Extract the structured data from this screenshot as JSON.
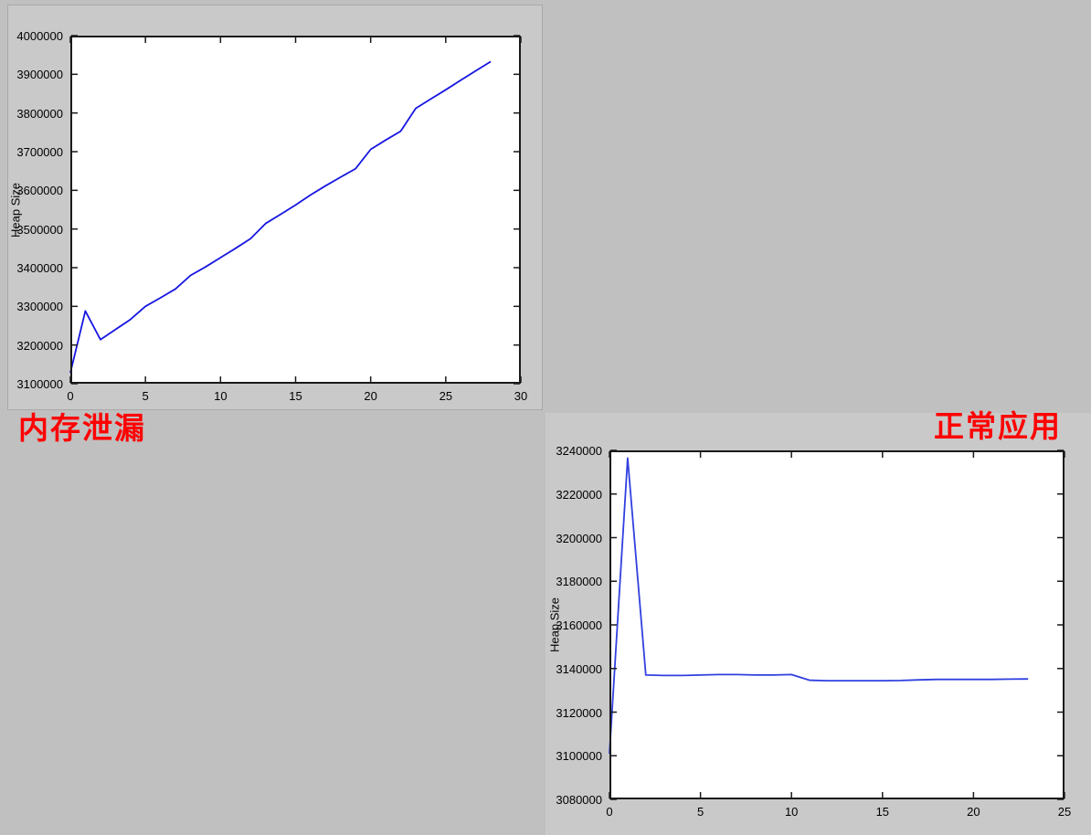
{
  "page": {
    "background_color": "#c0c0c0",
    "figure_background_color": "#c9c9c9",
    "annotation_color": "#ff0000",
    "axis_color": "#1a1a1a",
    "plot_background_color": "#ffffff"
  },
  "annotations": [
    {
      "text": "内存泄漏",
      "color": "#ff0000"
    },
    {
      "text": "正常应用",
      "color": "#ff0000"
    }
  ],
  "charts": [
    {
      "name": "memory-leak-heap-chart",
      "ylabel": "Heap Size",
      "line_color": "#1616e0",
      "xlim": [
        0,
        30
      ],
      "ylim": [
        3100000,
        4000000
      ],
      "xticks": [
        0,
        5,
        10,
        15,
        20,
        25,
        30
      ],
      "yticks": [
        3100000,
        3200000,
        3300000,
        3400000,
        3500000,
        3600000,
        3700000,
        3800000,
        3900000,
        4000000
      ]
    },
    {
      "name": "normal-app-heap-chart",
      "ylabel": "Heap Size",
      "line_color": "#3040df",
      "xlim": [
        0,
        25
      ],
      "ylim": [
        3080000,
        3240000
      ],
      "xticks": [
        0,
        5,
        10,
        15,
        20,
        25
      ],
      "yticks": [
        3080000,
        3100000,
        3120000,
        3140000,
        3160000,
        3180000,
        3200000,
        3220000,
        3240000
      ]
    }
  ],
  "chart_data": [
    {
      "type": "line",
      "title": "",
      "xlabel": "",
      "ylabel": "Heap Size",
      "annotation": "内存泄漏",
      "legend": null,
      "grid": false,
      "xlim": [
        0,
        30
      ],
      "ylim": [
        3100000,
        4000000
      ],
      "x": [
        0,
        1,
        2,
        3,
        4,
        5,
        6,
        7,
        8,
        9,
        10,
        11,
        12,
        13,
        14,
        15,
        16,
        17,
        18,
        19,
        20,
        21,
        22,
        23,
        24,
        25,
        26,
        27,
        28
      ],
      "y": [
        3128000,
        3288000,
        3214000,
        3240000,
        3266000,
        3300000,
        3322000,
        3345000,
        3380000,
        3402000,
        3426000,
        3450000,
        3475000,
        3514000,
        3538000,
        3562000,
        3588000,
        3612000,
        3634000,
        3656000,
        3706000,
        3730000,
        3753000,
        3812000,
        3836000,
        3860000,
        3885000,
        3909000,
        3933000
      ]
    },
    {
      "type": "line",
      "title": "",
      "xlabel": "",
      "ylabel": "Heap Size",
      "annotation": "正常应用",
      "legend": null,
      "grid": false,
      "xlim": [
        0,
        25
      ],
      "ylim": [
        3080000,
        3240000
      ],
      "x": [
        0,
        1,
        2,
        3,
        4,
        5,
        6,
        7,
        8,
        9,
        10,
        11,
        12,
        13,
        14,
        15,
        16,
        17,
        18,
        19,
        20,
        21,
        22,
        23
      ],
      "y": [
        3101000,
        3236500,
        3137000,
        3136800,
        3136800,
        3137000,
        3137200,
        3137200,
        3137000,
        3137000,
        3137200,
        3134600,
        3134400,
        3134400,
        3134400,
        3134400,
        3134500,
        3134800,
        3135000,
        3135000,
        3135000,
        3135000,
        3135100,
        3135200
      ]
    }
  ]
}
